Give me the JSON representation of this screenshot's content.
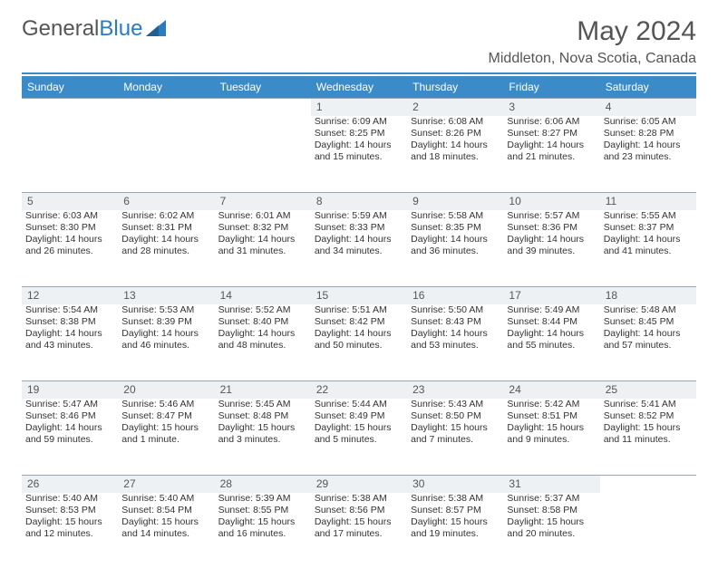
{
  "brand": {
    "name_part1": "General",
    "name_part2": "Blue"
  },
  "title": "May 2024",
  "location": "Middleton, Nova Scotia, Canada",
  "colors": {
    "header_bg": "#3b8bc9",
    "daynum_bg": "#eef1f4",
    "rule": "#3b8bc9"
  },
  "weekdays": [
    "Sunday",
    "Monday",
    "Tuesday",
    "Wednesday",
    "Thursday",
    "Friday",
    "Saturday"
  ],
  "weeks": [
    {
      "nums": [
        "",
        "",
        "",
        "1",
        "2",
        "3",
        "4"
      ],
      "cells": [
        null,
        null,
        null,
        {
          "sunrise": "Sunrise: 6:09 AM",
          "sunset": "Sunset: 8:25 PM",
          "day1": "Daylight: 14 hours",
          "day2": "and 15 minutes."
        },
        {
          "sunrise": "Sunrise: 6:08 AM",
          "sunset": "Sunset: 8:26 PM",
          "day1": "Daylight: 14 hours",
          "day2": "and 18 minutes."
        },
        {
          "sunrise": "Sunrise: 6:06 AM",
          "sunset": "Sunset: 8:27 PM",
          "day1": "Daylight: 14 hours",
          "day2": "and 21 minutes."
        },
        {
          "sunrise": "Sunrise: 6:05 AM",
          "sunset": "Sunset: 8:28 PM",
          "day1": "Daylight: 14 hours",
          "day2": "and 23 minutes."
        }
      ]
    },
    {
      "nums": [
        "5",
        "6",
        "7",
        "8",
        "9",
        "10",
        "11"
      ],
      "cells": [
        {
          "sunrise": "Sunrise: 6:03 AM",
          "sunset": "Sunset: 8:30 PM",
          "day1": "Daylight: 14 hours",
          "day2": "and 26 minutes."
        },
        {
          "sunrise": "Sunrise: 6:02 AM",
          "sunset": "Sunset: 8:31 PM",
          "day1": "Daylight: 14 hours",
          "day2": "and 28 minutes."
        },
        {
          "sunrise": "Sunrise: 6:01 AM",
          "sunset": "Sunset: 8:32 PM",
          "day1": "Daylight: 14 hours",
          "day2": "and 31 minutes."
        },
        {
          "sunrise": "Sunrise: 5:59 AM",
          "sunset": "Sunset: 8:33 PM",
          "day1": "Daylight: 14 hours",
          "day2": "and 34 minutes."
        },
        {
          "sunrise": "Sunrise: 5:58 AM",
          "sunset": "Sunset: 8:35 PM",
          "day1": "Daylight: 14 hours",
          "day2": "and 36 minutes."
        },
        {
          "sunrise": "Sunrise: 5:57 AM",
          "sunset": "Sunset: 8:36 PM",
          "day1": "Daylight: 14 hours",
          "day2": "and 39 minutes."
        },
        {
          "sunrise": "Sunrise: 5:55 AM",
          "sunset": "Sunset: 8:37 PM",
          "day1": "Daylight: 14 hours",
          "day2": "and 41 minutes."
        }
      ]
    },
    {
      "nums": [
        "12",
        "13",
        "14",
        "15",
        "16",
        "17",
        "18"
      ],
      "cells": [
        {
          "sunrise": "Sunrise: 5:54 AM",
          "sunset": "Sunset: 8:38 PM",
          "day1": "Daylight: 14 hours",
          "day2": "and 43 minutes."
        },
        {
          "sunrise": "Sunrise: 5:53 AM",
          "sunset": "Sunset: 8:39 PM",
          "day1": "Daylight: 14 hours",
          "day2": "and 46 minutes."
        },
        {
          "sunrise": "Sunrise: 5:52 AM",
          "sunset": "Sunset: 8:40 PM",
          "day1": "Daylight: 14 hours",
          "day2": "and 48 minutes."
        },
        {
          "sunrise": "Sunrise: 5:51 AM",
          "sunset": "Sunset: 8:42 PM",
          "day1": "Daylight: 14 hours",
          "day2": "and 50 minutes."
        },
        {
          "sunrise": "Sunrise: 5:50 AM",
          "sunset": "Sunset: 8:43 PM",
          "day1": "Daylight: 14 hours",
          "day2": "and 53 minutes."
        },
        {
          "sunrise": "Sunrise: 5:49 AM",
          "sunset": "Sunset: 8:44 PM",
          "day1": "Daylight: 14 hours",
          "day2": "and 55 minutes."
        },
        {
          "sunrise": "Sunrise: 5:48 AM",
          "sunset": "Sunset: 8:45 PM",
          "day1": "Daylight: 14 hours",
          "day2": "and 57 minutes."
        }
      ]
    },
    {
      "nums": [
        "19",
        "20",
        "21",
        "22",
        "23",
        "24",
        "25"
      ],
      "cells": [
        {
          "sunrise": "Sunrise: 5:47 AM",
          "sunset": "Sunset: 8:46 PM",
          "day1": "Daylight: 14 hours",
          "day2": "and 59 minutes."
        },
        {
          "sunrise": "Sunrise: 5:46 AM",
          "sunset": "Sunset: 8:47 PM",
          "day1": "Daylight: 15 hours",
          "day2": "and 1 minute."
        },
        {
          "sunrise": "Sunrise: 5:45 AM",
          "sunset": "Sunset: 8:48 PM",
          "day1": "Daylight: 15 hours",
          "day2": "and 3 minutes."
        },
        {
          "sunrise": "Sunrise: 5:44 AM",
          "sunset": "Sunset: 8:49 PM",
          "day1": "Daylight: 15 hours",
          "day2": "and 5 minutes."
        },
        {
          "sunrise": "Sunrise: 5:43 AM",
          "sunset": "Sunset: 8:50 PM",
          "day1": "Daylight: 15 hours",
          "day2": "and 7 minutes."
        },
        {
          "sunrise": "Sunrise: 5:42 AM",
          "sunset": "Sunset: 8:51 PM",
          "day1": "Daylight: 15 hours",
          "day2": "and 9 minutes."
        },
        {
          "sunrise": "Sunrise: 5:41 AM",
          "sunset": "Sunset: 8:52 PM",
          "day1": "Daylight: 15 hours",
          "day2": "and 11 minutes."
        }
      ]
    },
    {
      "nums": [
        "26",
        "27",
        "28",
        "29",
        "30",
        "31",
        ""
      ],
      "cells": [
        {
          "sunrise": "Sunrise: 5:40 AM",
          "sunset": "Sunset: 8:53 PM",
          "day1": "Daylight: 15 hours",
          "day2": "and 12 minutes."
        },
        {
          "sunrise": "Sunrise: 5:40 AM",
          "sunset": "Sunset: 8:54 PM",
          "day1": "Daylight: 15 hours",
          "day2": "and 14 minutes."
        },
        {
          "sunrise": "Sunrise: 5:39 AM",
          "sunset": "Sunset: 8:55 PM",
          "day1": "Daylight: 15 hours",
          "day2": "and 16 minutes."
        },
        {
          "sunrise": "Sunrise: 5:38 AM",
          "sunset": "Sunset: 8:56 PM",
          "day1": "Daylight: 15 hours",
          "day2": "and 17 minutes."
        },
        {
          "sunrise": "Sunrise: 5:38 AM",
          "sunset": "Sunset: 8:57 PM",
          "day1": "Daylight: 15 hours",
          "day2": "and 19 minutes."
        },
        {
          "sunrise": "Sunrise: 5:37 AM",
          "sunset": "Sunset: 8:58 PM",
          "day1": "Daylight: 15 hours",
          "day2": "and 20 minutes."
        },
        null
      ]
    }
  ]
}
